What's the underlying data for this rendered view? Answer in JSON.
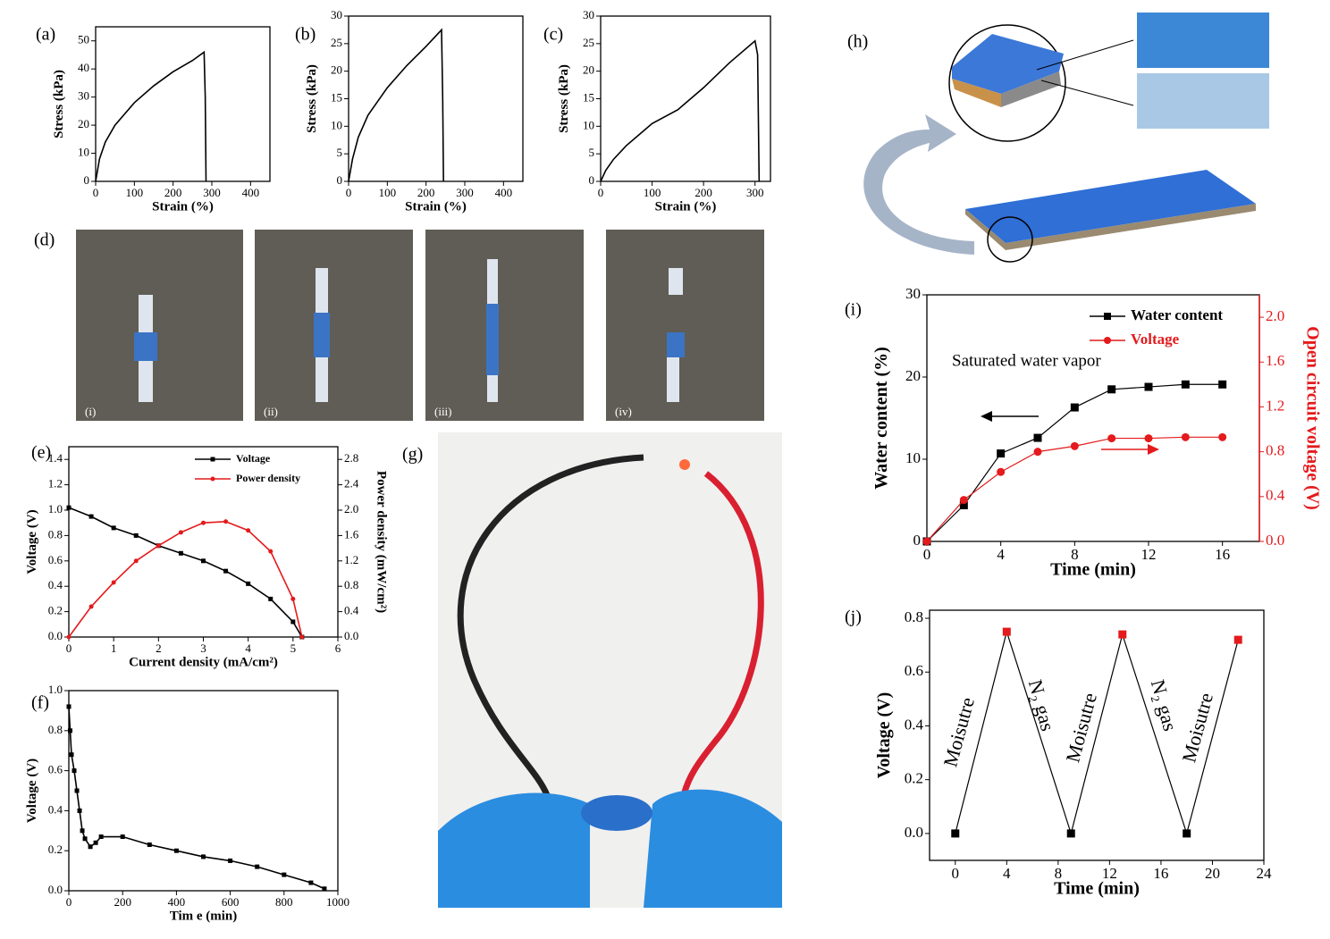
{
  "chart_data": [
    {
      "type": "line",
      "panel": "(a)",
      "xlabel": "Strain (%)",
      "ylabel": "Stress (kPa)",
      "xlim": [
        0,
        450
      ],
      "xticks": [
        0,
        100,
        200,
        300,
        400
      ],
      "ylim": [
        0,
        55
      ],
      "yticks": [
        0,
        10,
        20,
        30,
        40,
        50
      ],
      "series": [
        {
          "color": "#000000",
          "marker": "none",
          "x": [
            0,
            10,
            25,
            50,
            75,
            100,
            150,
            200,
            250,
            280,
            283,
            285
          ],
          "values": [
            0,
            8,
            14,
            20,
            24,
            28,
            34,
            39,
            43,
            46,
            30,
            0
          ]
        }
      ]
    },
    {
      "type": "line",
      "panel": "(b)",
      "xlabel": "Strain (%)",
      "ylabel": "Stress (kPa)",
      "xlim": [
        0,
        450
      ],
      "xticks": [
        0,
        100,
        200,
        300,
        400
      ],
      "ylim": [
        0,
        30
      ],
      "yticks": [
        0,
        5,
        10,
        15,
        20,
        25,
        30
      ],
      "series": [
        {
          "color": "#000000",
          "marker": "none",
          "x": [
            0,
            10,
            25,
            50,
            75,
            100,
            150,
            200,
            240,
            243,
            245
          ],
          "values": [
            0,
            4,
            8,
            12,
            14.5,
            17,
            21,
            24.5,
            27.5,
            15,
            0
          ]
        }
      ]
    },
    {
      "type": "line",
      "panel": "(c)",
      "xlabel": "Strain (%)",
      "ylabel": "Stress (kPa)",
      "xlim": [
        0,
        330
      ],
      "xticks": [
        0,
        100,
        200,
        300
      ],
      "ylim": [
        0,
        30
      ],
      "yticks": [
        0,
        5,
        10,
        15,
        20,
        25,
        30
      ],
      "series": [
        {
          "color": "#000000",
          "marker": "none",
          "x": [
            0,
            10,
            25,
            50,
            75,
            100,
            150,
            200,
            250,
            300,
            305,
            308
          ],
          "values": [
            0,
            2,
            4,
            6.5,
            8.5,
            10.5,
            13,
            17,
            21.5,
            25.5,
            23,
            0
          ]
        }
      ]
    },
    {
      "type": "line",
      "panel": "(e)",
      "xlabel": "Current density (mA/cm²)",
      "ylabel": "Voltage (V)",
      "y2label": "Power density (mW/cm²)",
      "xlim": [
        0,
        6
      ],
      "xticks": [
        0,
        1,
        2,
        3,
        4,
        5,
        6
      ],
      "ylim": [
        0,
        1.5
      ],
      "yticks": [
        {
          "value": 0,
          "label": "0.0"
        },
        0.2,
        0.4,
        0.6,
        0.8,
        {
          "value": 1,
          "label": "1.0"
        },
        1.2,
        1.4
      ],
      "y2lim": [
        0,
        3.0
      ],
      "y2ticks": [
        {
          "value": 0,
          "label": "0.0"
        },
        0.4,
        0.8,
        1.2,
        1.6,
        {
          "value": 2,
          "label": "2.0"
        },
        2.4,
        2.8
      ],
      "legend": "upper right",
      "series": [
        {
          "name": "Voltage",
          "color": "#000000",
          "marker": "square",
          "x": [
            0,
            0.5,
            1,
            1.5,
            2,
            2.5,
            3,
            3.5,
            4,
            4.5,
            5,
            5.2
          ],
          "values": [
            1.02,
            0.95,
            0.86,
            0.8,
            0.72,
            0.66,
            0.6,
            0.52,
            0.42,
            0.3,
            0.12,
            0
          ]
        },
        {
          "name": "Power density",
          "color": "#e41a1c",
          "marker": "circle",
          "axis": "y2",
          "x": [
            0,
            0.5,
            1,
            1.5,
            2,
            2.5,
            3,
            3.5,
            4,
            4.5,
            5,
            5.2
          ],
          "values": [
            0,
            0.48,
            0.86,
            1.2,
            1.44,
            1.65,
            1.8,
            1.82,
            1.68,
            1.35,
            0.6,
            0
          ]
        }
      ]
    },
    {
      "type": "line",
      "panel": "(f)",
      "xlabel": "Tim e (min)",
      "ylabel": "Voltage (V)",
      "xlim": [
        0,
        1000
      ],
      "xticks": [
        0,
        200,
        400,
        600,
        800,
        1000
      ],
      "ylim": [
        0,
        1.0
      ],
      "yticks": [
        {
          "value": 0,
          "label": "0.0"
        },
        0.2,
        0.4,
        0.6,
        0.8,
        {
          "value": 1,
          "label": "1.0"
        }
      ],
      "series": [
        {
          "color": "#000000",
          "marker": "square",
          "x": [
            0,
            5,
            10,
            20,
            30,
            40,
            50,
            60,
            80,
            100,
            120,
            200,
            300,
            400,
            500,
            600,
            700,
            800,
            900,
            950
          ],
          "values": [
            0.92,
            0.8,
            0.68,
            0.6,
            0.5,
            0.4,
            0.3,
            0.26,
            0.22,
            0.24,
            0.27,
            0.27,
            0.23,
            0.2,
            0.17,
            0.15,
            0.12,
            0.08,
            0.04,
            0.01
          ]
        }
      ]
    },
    {
      "type": "line",
      "panel": "(i)",
      "xlabel": "Time (min)",
      "ylabel": "Water content (%)",
      "y2label": "Open circuit voltage (V)",
      "annotation": "Saturated water vapor",
      "xlim": [
        0,
        18
      ],
      "xticks": [
        0,
        4,
        8,
        12,
        16
      ],
      "ylim": [
        0,
        30
      ],
      "yticks": [
        0,
        10,
        20,
        30
      ],
      "y2lim": [
        0,
        2.2
      ],
      "y2ticks": [
        {
          "value": 0,
          "label": "0.0"
        },
        0.4,
        0.8,
        1.2,
        1.6,
        {
          "value": 2,
          "label": "2.0"
        }
      ],
      "legend": "upper right",
      "series": [
        {
          "name": "Water content",
          "color": "#000000",
          "marker": "square",
          "x": [
            0,
            2,
            4,
            6,
            8,
            10,
            12,
            14,
            16
          ],
          "values": [
            0,
            4.4,
            10.7,
            12.6,
            16.3,
            18.5,
            18.8,
            19.1,
            19.1
          ]
        },
        {
          "name": "Voltage",
          "color": "#e41a1c",
          "marker": "circle",
          "axis": "y2",
          "x": [
            0,
            2,
            4,
            6,
            8,
            10,
            12,
            14,
            16
          ],
          "values": [
            0,
            0.37,
            0.62,
            0.8,
            0.85,
            0.92,
            0.92,
            0.93,
            0.93
          ]
        }
      ]
    },
    {
      "type": "line",
      "panel": "(j)",
      "xlabel": "Time (min)",
      "ylabel": "Voltage (V)",
      "annotations": [
        "Moisutre",
        "N₂ gas",
        "Moisutre",
        "N₂ gas",
        "Moisutre"
      ],
      "xlim": [
        -2,
        24
      ],
      "xticks": [
        0,
        4,
        8,
        12,
        16,
        20,
        24
      ],
      "ylim": [
        -0.1,
        0.83
      ],
      "yticks": [
        {
          "value": 0,
          "label": "0.0"
        },
        0.2,
        0.4,
        0.6,
        0.8
      ],
      "series": [
        {
          "color": "#000000",
          "marker": "square",
          "marker_colors": [
            "#000000",
            "#e41a1c",
            "#000000",
            "#e41a1c",
            "#000000",
            "#e41a1c"
          ],
          "x": [
            0,
            4,
            9,
            13,
            18,
            22
          ],
          "values": [
            0,
            0.75,
            0,
            0.74,
            0,
            0.72
          ]
        }
      ]
    }
  ],
  "photos": {
    "d": {
      "label": "(d)",
      "captions": [
        "(i)",
        "(ii)",
        "(iii)",
        "(iv)"
      ]
    },
    "g": {
      "label": "(g)"
    },
    "h": {
      "label": "(h)"
    }
  }
}
